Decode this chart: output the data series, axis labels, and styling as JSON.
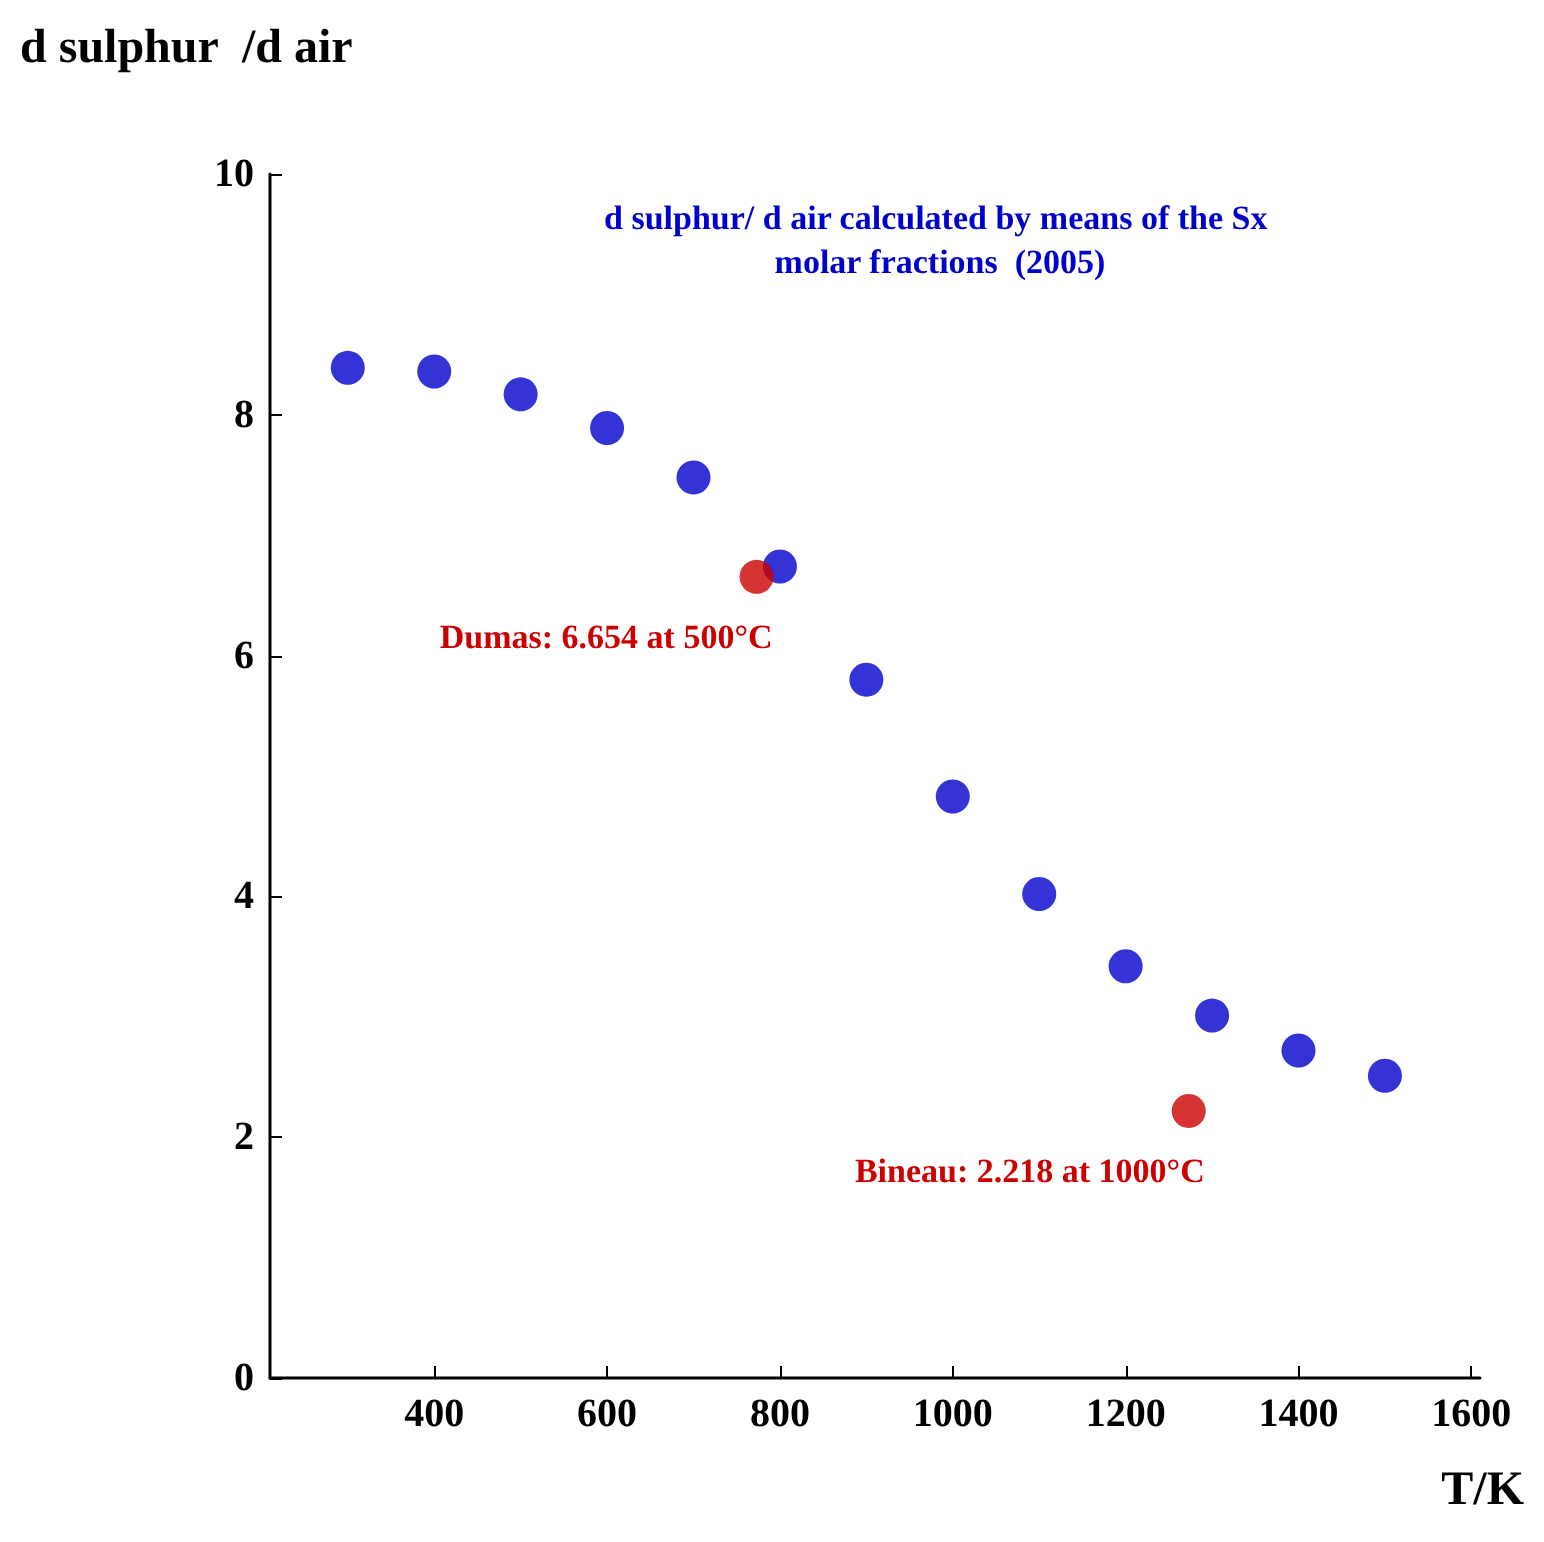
{
  "chart_data": {
    "type": "scatter",
    "xlabel": "T/K",
    "ylabel": "d sulphur  /d air",
    "xlim": [
      210,
      1610
    ],
    "xticks": [
      400,
      600,
      800,
      1000,
      1200,
      1400,
      1600
    ],
    "ylim": [
      0,
      10
    ],
    "yticks": [
      0,
      2,
      4,
      6,
      8,
      10
    ],
    "grid": false,
    "marker": "circle",
    "series": [
      {
        "color": "#0000cc",
        "x": [
          300,
          400,
          500,
          600,
          700,
          800,
          900,
          1000,
          1100,
          1200,
          1300,
          1400,
          1500
        ],
        "values": [
          8.39,
          8.36,
          8.17,
          7.89,
          7.48,
          6.74,
          5.8,
          4.83,
          4.02,
          3.42,
          3.01,
          2.72,
          2.51
        ]
      },
      {
        "color": "#cc0000",
        "x": [
          773,
          1273
        ],
        "values": [
          6.654,
          2.218
        ]
      }
    ],
    "annotations": [
      "d sulphur/ d air calculated by means of the Sx molar fractions  (2005)",
      {
        "text": "Dumas: 6.654 at 500°C",
        "x": 773,
        "y": 6.654
      },
      {
        "text": "Bineau: 2.218 at 1000°C",
        "x": 1273,
        "y": 2.218
      }
    ]
  }
}
